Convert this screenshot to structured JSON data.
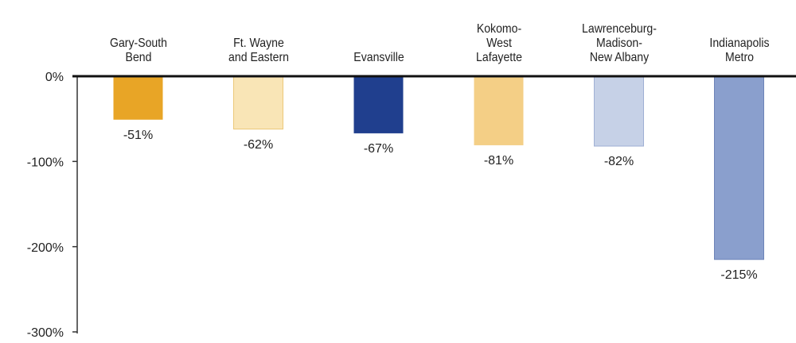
{
  "chart_data": {
    "type": "bar",
    "categories": [
      "Gary-South\nBend",
      "Ft. Wayne\nand Eastern",
      "Evansville",
      "Kokomo-\nWest\nLafayette",
      "Lawrenceburg-\nMadison-\nNew Albany",
      "Indianapolis\nMetro"
    ],
    "values": [
      -51,
      -62,
      -67,
      -81,
      -82,
      -215
    ],
    "value_labels": [
      "-51%",
      "-62%",
      "-67%",
      "-81%",
      "-82%",
      "-215%"
    ],
    "colors": [
      "#e8a526",
      "#f9e5b6",
      "#203f8e",
      "#f4cf86",
      "#c6d1e7",
      "#8a9fcd"
    ],
    "ylim": [
      -300,
      0
    ],
    "yticks": [
      {
        "value": 0,
        "label": "0%"
      },
      {
        "value": -100,
        "label": "-100%"
      },
      {
        "value": -200,
        "label": "-200%"
      },
      {
        "value": -300,
        "label": "-300%"
      }
    ]
  }
}
